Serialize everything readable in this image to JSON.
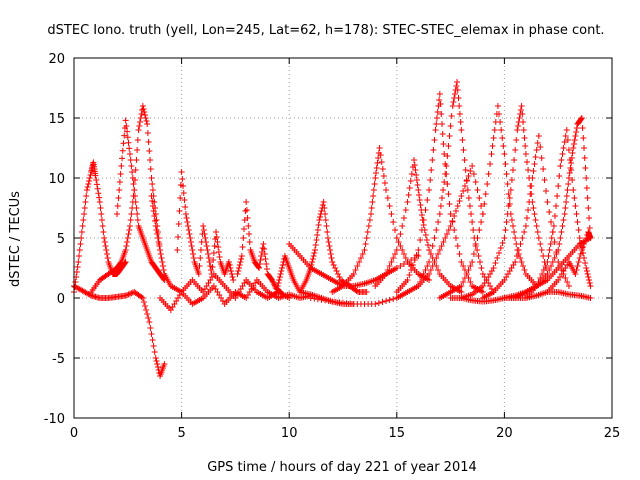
{
  "chart_data": {
    "type": "scatter",
    "title": "dSTEC Iono. truth (yell, Lon=245, Lat=62, h=178): STEC-STEC_elemax in phase cont.",
    "xlabel": "GPS time / hours of day 221 of year 2014",
    "ylabel": "dSTEC  / TECUs",
    "xlim": [
      0,
      25
    ],
    "ylim": [
      -10,
      20
    ],
    "xticks": [
      0,
      5,
      10,
      15,
      20,
      25
    ],
    "yticks": [
      -10,
      -5,
      0,
      5,
      10,
      15,
      20
    ],
    "xtick_labels": [
      "0",
      "5",
      "10",
      "15",
      "20",
      "25"
    ],
    "ytick_labels": [
      "-10",
      "-5",
      "0",
      "5",
      "10",
      "15",
      "20"
    ],
    "grid": true,
    "marker": "plus",
    "color": "#ff0000",
    "series": [
      {
        "x": [
          0.0,
          0.2,
          0.4,
          0.6,
          0.8,
          0.9,
          1.0,
          1.2,
          1.4,
          1.6,
          1.8,
          2.0,
          2.2,
          2.4
        ],
        "values": [
          0.5,
          3.0,
          6.0,
          9.0,
          10.5,
          11.3,
          10.2,
          8.0,
          5.0,
          3.0,
          2.0,
          2.0,
          2.5,
          3.0
        ]
      },
      {
        "x": [
          0.0,
          0.4,
          0.8,
          1.2,
          1.6,
          2.0,
          2.4,
          2.8,
          3.2,
          3.5,
          3.8,
          4.0,
          4.2
        ],
        "values": [
          1.0,
          0.6,
          0.2,
          0.0,
          0.0,
          0.1,
          0.2,
          0.5,
          0.0,
          -2.0,
          -5.0,
          -6.5,
          -5.5
        ]
      },
      {
        "x": [
          0.8,
          1.2,
          1.6,
          2.0,
          2.2,
          2.4,
          2.6,
          2.8,
          3.0,
          3.2,
          3.4,
          3.6,
          3.8,
          4.0
        ],
        "values": [
          0.5,
          1.5,
          2.0,
          2.5,
          3.0,
          4.0,
          6.0,
          9.0,
          14.0,
          16.0,
          14.5,
          10.0,
          7.0,
          4.0
        ]
      },
      {
        "x": [
          2.0,
          2.2,
          2.4,
          2.6,
          2.8,
          3.0,
          3.2,
          3.4,
          3.6,
          3.8,
          4.0,
          4.2
        ],
        "values": [
          7.0,
          11.0,
          14.8,
          12.0,
          9.0,
          6.0,
          5.0,
          4.0,
          3.0,
          2.5,
          2.0,
          1.5
        ]
      },
      {
        "x": [
          3.6,
          3.8,
          4.0,
          4.2,
          4.5,
          5.0,
          5.5,
          6.0,
          6.5,
          7.0,
          7.5,
          8.0,
          8.5,
          9.0,
          9.5,
          10.0
        ],
        "values": [
          8.5,
          6.0,
          4.0,
          2.0,
          1.0,
          0.5,
          1.5,
          0.5,
          2.0,
          1.0,
          0.0,
          1.5,
          0.5,
          0.0,
          0.5,
          0.0
        ]
      },
      {
        "x": [
          4.0,
          4.5,
          5.0,
          5.5,
          6.0,
          6.5,
          7.0,
          7.5,
          8.0,
          8.5,
          9.0,
          9.5,
          10.0,
          10.5,
          11.0
        ],
        "values": [
          0.0,
          -1.0,
          0.5,
          -0.5,
          0.0,
          1.0,
          -0.5,
          0.5,
          0.0,
          1.5,
          0.5,
          0.0,
          0.3,
          0.0,
          0.2
        ]
      },
      {
        "x": [
          4.8,
          5.0,
          5.2,
          5.4,
          5.6,
          5.8,
          6.0,
          6.2,
          6.4,
          6.6,
          6.8,
          7.0,
          7.2,
          7.4
        ],
        "values": [
          4.0,
          10.5,
          7.0,
          5.0,
          3.0,
          2.0,
          6.0,
          4.0,
          2.0,
          5.5,
          3.0,
          2.0,
          3.0,
          1.5
        ]
      },
      {
        "x": [
          7.6,
          7.8,
          8.0,
          8.2,
          8.4,
          8.6,
          8.8,
          9.0,
          9.2,
          9.4,
          9.6
        ],
        "values": [
          2.0,
          3.5,
          8.0,
          4.0,
          3.0,
          2.5,
          4.5,
          2.0,
          1.5,
          0.8,
          0.5
        ]
      },
      {
        "x": [
          9.4,
          9.6,
          9.8,
          10.0,
          10.2,
          10.5,
          11.0,
          11.5,
          12.0,
          12.5,
          13.0
        ],
        "values": [
          0.5,
          2.0,
          3.5,
          2.5,
          1.5,
          0.5,
          0.3,
          0.0,
          -0.3,
          -0.5,
          -0.5
        ]
      },
      {
        "x": [
          10.5,
          10.8,
          11.0,
          11.2,
          11.4,
          11.6,
          11.8,
          12.0,
          12.4,
          12.8,
          13.2,
          13.6
        ],
        "values": [
          0.5,
          1.5,
          2.5,
          4.0,
          6.5,
          8.0,
          5.0,
          3.0,
          1.5,
          1.0,
          0.5,
          0.5
        ]
      },
      {
        "x": [
          10.0,
          10.5,
          11.0,
          11.5,
          12.0,
          12.5,
          13.0,
          13.5,
          14.0,
          14.5,
          15.0,
          16.0
        ],
        "values": [
          4.5,
          3.5,
          2.5,
          2.0,
          1.5,
          1.0,
          1.0,
          1.2,
          1.5,
          2.0,
          2.5,
          3.5
        ]
      },
      {
        "x": [
          12.0,
          12.5,
          13.0,
          13.5,
          13.8,
          14.0,
          14.2,
          14.5,
          15.0,
          15.5,
          16.0,
          16.5
        ],
        "values": [
          0.5,
          1.0,
          2.0,
          4.0,
          7.0,
          10.0,
          12.5,
          9.0,
          5.0,
          3.0,
          2.0,
          1.5
        ]
      },
      {
        "x": [
          11.0,
          12.0,
          13.0,
          14.0,
          15.0,
          15.5,
          16.0,
          16.5,
          17.0,
          17.5,
          18.0,
          18.5,
          19.0
        ],
        "values": [
          0.0,
          -0.3,
          -0.5,
          -0.5,
          0.0,
          0.5,
          1.0,
          2.0,
          4.0,
          6.0,
          8.5,
          11.0,
          7.0
        ]
      },
      {
        "x": [
          14.0,
          14.5,
          15.0,
          15.5,
          15.8,
          16.0,
          16.2,
          16.5,
          17.0,
          17.5,
          18.0
        ],
        "values": [
          1.0,
          2.0,
          4.0,
          8.0,
          11.5,
          9.0,
          6.5,
          4.0,
          2.0,
          1.0,
          0.5
        ]
      },
      {
        "x": [
          15.0,
          15.5,
          16.0,
          16.5,
          16.8,
          17.0,
          17.2,
          17.5,
          18.0,
          18.5,
          19.0
        ],
        "values": [
          0.5,
          1.5,
          4.0,
          9.0,
          14.0,
          17.0,
          12.0,
          7.0,
          3.0,
          1.0,
          0.5
        ]
      },
      {
        "x": [
          16.0,
          16.5,
          17.0,
          17.3,
          17.6,
          17.8,
          18.0,
          18.3,
          18.6,
          19.0,
          19.5
        ],
        "values": [
          1.0,
          3.0,
          7.0,
          11.0,
          16.0,
          18.0,
          14.0,
          9.0,
          5.0,
          2.0,
          0.5
        ]
      },
      {
        "x": [
          17.0,
          17.5,
          18.0,
          18.5,
          19.0,
          19.4,
          19.7,
          20.0,
          20.3,
          20.6,
          21.0,
          21.5
        ],
        "values": [
          0.0,
          0.5,
          1.0,
          3.0,
          7.0,
          12.0,
          16.0,
          12.0,
          7.0,
          4.0,
          2.0,
          1.0
        ]
      },
      {
        "x": [
          18.0,
          18.5,
          19.0,
          19.5,
          20.0,
          20.3,
          20.6,
          20.8,
          21.0,
          21.3,
          21.6,
          22.0
        ],
        "values": [
          0.0,
          0.3,
          1.0,
          2.5,
          5.0,
          9.0,
          14.0,
          16.0,
          12.0,
          8.0,
          5.0,
          2.0
        ]
      },
      {
        "x": [
          19.0,
          19.5,
          20.0,
          20.5,
          21.0,
          21.3,
          21.6,
          22.0,
          22.5,
          23.0
        ],
        "values": [
          0.0,
          0.5,
          1.5,
          3.0,
          6.0,
          10.0,
          13.5,
          8.0,
          3.0,
          1.0
        ]
      },
      {
        "x": [
          20.5,
          21.0,
          21.5,
          22.0,
          22.5,
          22.8,
          23.0,
          23.2,
          23.4,
          23.6,
          23.8,
          24.0
        ],
        "values": [
          0.0,
          0.5,
          1.0,
          2.0,
          4.0,
          7.0,
          10.0,
          12.5,
          14.5,
          15.0,
          10.0,
          5.0
        ]
      },
      {
        "x": [
          21.0,
          21.5,
          22.0,
          22.3,
          22.6,
          22.9,
          23.2,
          23.5,
          23.8,
          24.0
        ],
        "values": [
          0.0,
          1.0,
          3.0,
          6.0,
          11.0,
          14.0,
          9.0,
          5.0,
          2.5,
          1.0
        ]
      },
      {
        "x": [
          22.0,
          22.5,
          23.0,
          23.3,
          23.6,
          23.9,
          24.0
        ],
        "values": [
          0.5,
          1.5,
          3.0,
          2.0,
          4.0,
          5.5,
          5.0
        ]
      },
      {
        "x": [
          20.0,
          20.5,
          21.0,
          21.5,
          22.0,
          22.5,
          23.0,
          23.5,
          24.0
        ],
        "values": [
          0.0,
          0.2,
          0.5,
          1.0,
          1.5,
          2.5,
          3.5,
          4.5,
          5.0
        ]
      },
      {
        "x": [
          17.5,
          18.0,
          18.5,
          19.0,
          19.5,
          20.0,
          20.5,
          21.0,
          21.5,
          22.0,
          22.5,
          23.0,
          23.5,
          24.0
        ],
        "values": [
          0.0,
          0.0,
          -0.2,
          -0.3,
          -0.2,
          0.0,
          0.0,
          0.0,
          0.2,
          0.5,
          0.5,
          0.3,
          0.2,
          0.0
        ]
      }
    ]
  }
}
